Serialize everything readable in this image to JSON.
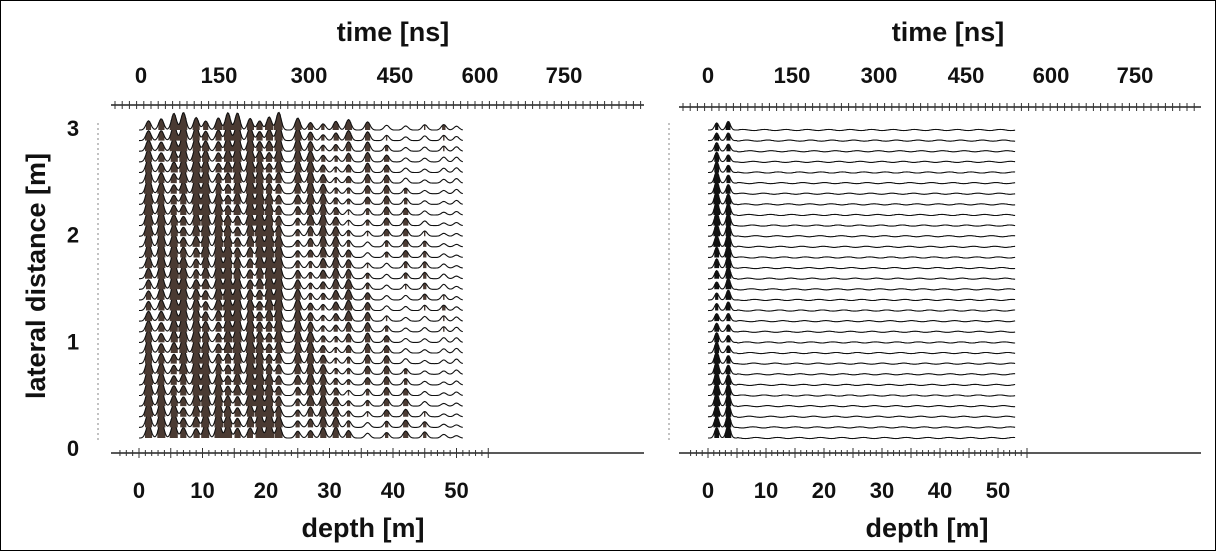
{
  "chart_data": [
    {
      "type": "line",
      "panel": "left",
      "top_axis": {
        "label": "time [ns]",
        "ticks": [
          "0",
          "150",
          "300",
          "450",
          "600",
          "750"
        ]
      },
      "bottom_axis": {
        "label": "depth [m]",
        "ticks": [
          "0",
          "10",
          "20",
          "30",
          "40",
          "50"
        ],
        "range": [
          -3,
          55
        ]
      },
      "y_axis": {
        "label": "lateral distance [m]",
        "ticks": [
          "0",
          "1",
          "2",
          "3"
        ],
        "range": [
          0,
          3
        ]
      },
      "trace_count": 30,
      "trace_depth_range": [
        0,
        51
      ],
      "reflector_depths_m": [
        1.5,
        3.5,
        5.5,
        7,
        9,
        10.5,
        12.5,
        14,
        15.5,
        17.5,
        19,
        20.5,
        22,
        25,
        27,
        29,
        31,
        33,
        36,
        39,
        42,
        45,
        48,
        50
      ],
      "fill_color": "#4a3a32"
    },
    {
      "type": "line",
      "panel": "right",
      "top_axis": {
        "label": "time [ns]",
        "ticks": [
          "0",
          "150",
          "300",
          "450",
          "600",
          "750"
        ]
      },
      "bottom_axis": {
        "label": "depth [m]",
        "ticks": [
          "0",
          "10",
          "20",
          "30",
          "40",
          "50"
        ],
        "range": [
          -3,
          55
        ]
      },
      "trace_count": 30,
      "trace_depth_range": [
        0,
        53
      ],
      "reflector_depths_m": [
        1.5,
        3.5
      ],
      "fill_color": "#111111"
    }
  ]
}
